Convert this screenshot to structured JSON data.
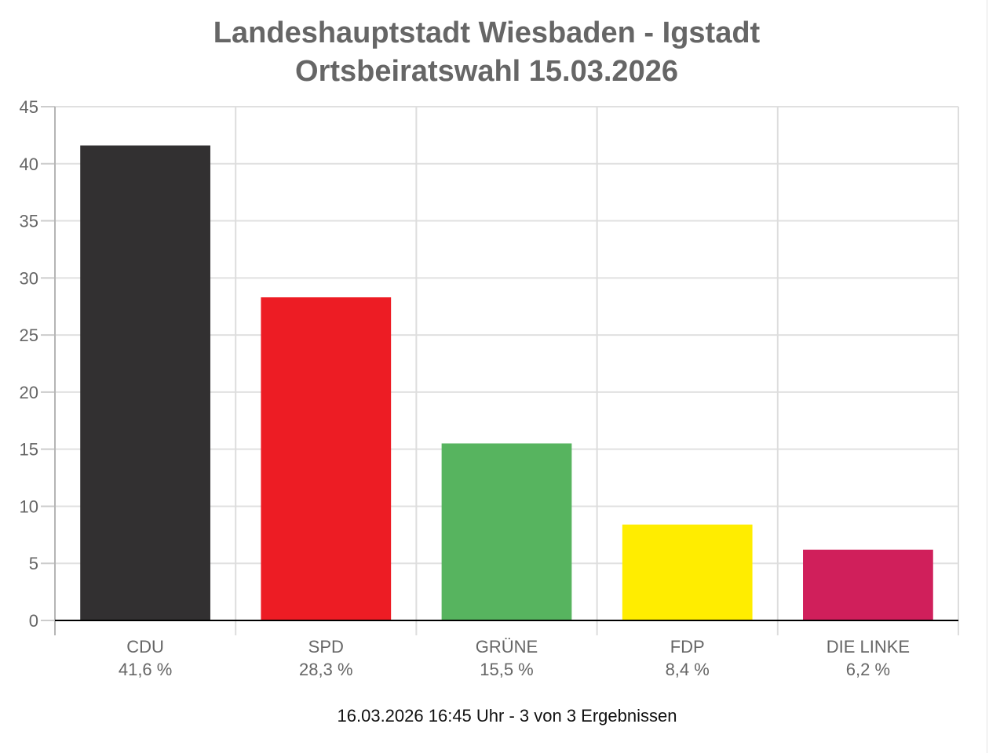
{
  "chart_data": {
    "type": "bar",
    "title": "Landeshauptstadt Wiesbaden - Igstadt",
    "subtitle": "Ortsbeiratswahl 15.03.2026",
    "categories": [
      "CDU",
      "SPD",
      "GRÜNE",
      "FDP",
      "DIE LINKE"
    ],
    "values": [
      41.6,
      28.3,
      15.5,
      8.4,
      6.2
    ],
    "value_labels": [
      "41,6 %",
      "28,3 %",
      "15,5 %",
      "8,4 %",
      "6,2 %"
    ],
    "colors": [
      "#323031",
      "#ed1c24",
      "#57b45f",
      "#ffed00",
      "#d01f5b"
    ],
    "xlabel": "",
    "ylabel": "",
    "ylim": [
      0,
      45
    ],
    "yticks": [
      0,
      5,
      10,
      15,
      20,
      25,
      30,
      35,
      40,
      45
    ],
    "grid": true,
    "legend": "none",
    "footer": "16.03.2026 16:45 Uhr - 3 von 3 Ergebnissen"
  }
}
